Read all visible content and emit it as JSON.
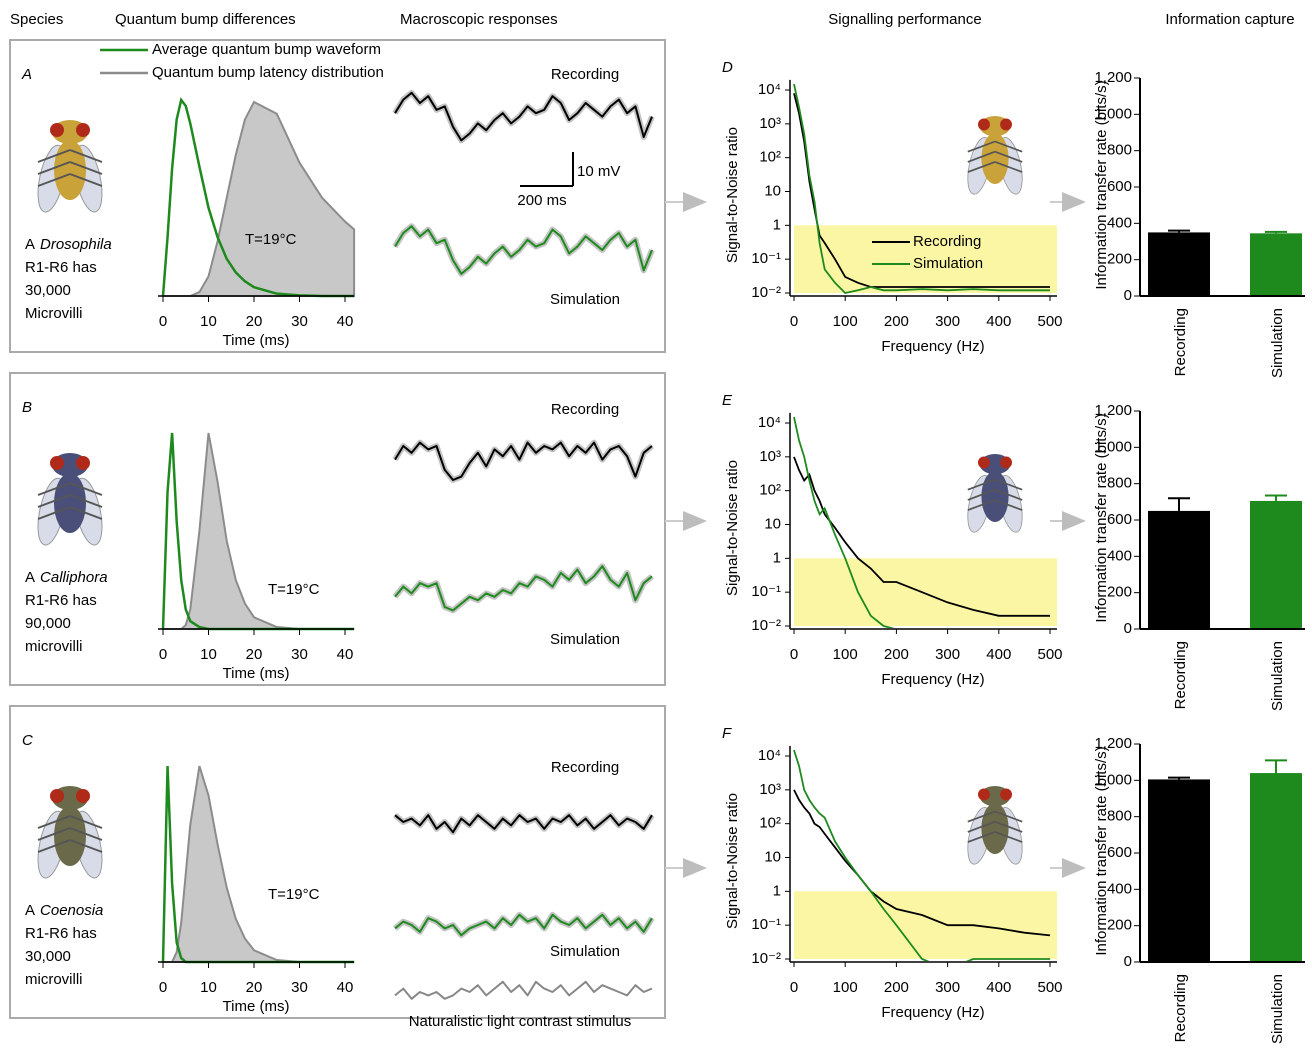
{
  "headers": [
    "Species",
    "Quantum bump differences",
    "Macroscopic responses",
    "Signalling performance",
    "Information capture"
  ],
  "legend": {
    "waveform": {
      "name": "Average quantum bump waveform",
      "color": "#1e8a1e"
    },
    "latency": {
      "name": "Quantum bump latency distribution",
      "color": "#8c8c8c"
    }
  },
  "rows": [
    {
      "letter": "A",
      "species": {
        "article": "A",
        "genus": "Drosophila",
        "lines": [
          "R1-R6 has",
          "30,000",
          "Microvilli"
        ]
      },
      "bump": {
        "xlabel": "Time (ms)",
        "xlim": [
          0,
          42
        ],
        "xticks": [
          0,
          10,
          20,
          30,
          40
        ],
        "temperature": "T=19°C",
        "x": [
          0,
          1,
          2,
          3,
          4,
          5,
          6,
          8,
          10,
          12,
          14,
          16,
          18,
          20,
          25,
          30,
          35,
          40,
          42
        ],
        "waveform": [
          0,
          0.3,
          0.65,
          0.9,
          1.0,
          0.97,
          0.88,
          0.66,
          0.45,
          0.3,
          0.19,
          0.12,
          0.075,
          0.045,
          0.012,
          0.003,
          0,
          0,
          0
        ],
        "latency": [
          0,
          0,
          0,
          0,
          0,
          0,
          0,
          0.02,
          0.1,
          0.28,
          0.5,
          0.72,
          0.9,
          0.99,
          0.93,
          0.68,
          0.5,
          0.38,
          0.34
        ]
      },
      "traces": {
        "recording_label": "Recording",
        "simulation_label": "Simulation",
        "recording": [
          2,
          6,
          8,
          5,
          7,
          3,
          4,
          -2,
          -6,
          -4,
          -1,
          -3,
          0,
          2,
          -1,
          1,
          4,
          2,
          3,
          7,
          5,
          0,
          2,
          5,
          3,
          1,
          4,
          6,
          2,
          4,
          -5,
          1
        ],
        "simulation": [
          1,
          5,
          7,
          4,
          6,
          2,
          3,
          -3,
          -7,
          -5,
          -2,
          -4,
          -1,
          1,
          -2,
          0,
          3,
          1,
          2,
          6,
          4,
          -1,
          1,
          4,
          2,
          0,
          3,
          5,
          1,
          3,
          -6,
          0
        ],
        "scalebar": {
          "voltage": {
            "value": 10,
            "label": "10 mV"
          },
          "time": {
            "value": 200,
            "label": "200 ms"
          }
        }
      },
      "snr": {
        "letter": "D",
        "ylabel": "Signal-to-Noise ratio",
        "xlabel": "Frequency (Hz)",
        "xlim": [
          0,
          500
        ],
        "xticks": [
          0,
          100,
          200,
          300,
          400,
          500
        ],
        "ylim": [
          0.01,
          20000
        ],
        "log": true,
        "yticks": [
          {
            "value": 10000,
            "label": "10⁴"
          },
          {
            "value": 1000,
            "label": "10³"
          },
          {
            "value": 100,
            "label": "10²"
          },
          10,
          1,
          {
            "value": 0.1,
            "label": "10⁻¹"
          },
          {
            "value": 0.01,
            "label": "10⁻²"
          }
        ],
        "band": [
          0.01,
          1
        ],
        "band_color": "#fbf6a4",
        "legend": true,
        "x": [
          0,
          10,
          20,
          30,
          40,
          50,
          60,
          80,
          100,
          125,
          150,
          175,
          200,
          250,
          300,
          350,
          400,
          450,
          500
        ],
        "series": [
          {
            "name": "Recording",
            "color": "#000000",
            "values": [
              8000,
              2000,
              300,
              20,
              3,
              0.5,
              0.3,
              0.1,
              0.03,
              0.02,
              0.015,
              0.015,
              0.015,
              0.015,
              0.015,
              0.015,
              0.015,
              0.015,
              0.015
            ]
          },
          {
            "name": "Simulation",
            "color": "#1e8a1e",
            "values": [
              15000,
              3000,
              500,
              30,
              5,
              0.3,
              0.05,
              0.02,
              0.01,
              0.012,
              0.015,
              0.012,
              0.012,
              0.013,
              0.012,
              0.013,
              0.012,
              0.012,
              0.012
            ]
          }
        ]
      },
      "info": {
        "ylabel": "Information transfer rate (bits/s)",
        "ylim": [
          0,
          1200
        ],
        "yticks": [
          0,
          200,
          400,
          600,
          800,
          {
            "value": 1000,
            "label": "1,000"
          },
          {
            "value": 1200,
            "label": "1,200"
          }
        ],
        "categories": [
          "Recording",
          "Simulation"
        ],
        "values": [
          350,
          345
        ],
        "errors": [
          10,
          8
        ],
        "colors": [
          "#000000",
          "#1e8a1e"
        ]
      }
    },
    {
      "letter": "B",
      "species": {
        "article": "A",
        "genus": "Calliphora",
        "lines": [
          "R1-R6 has",
          "90,000",
          "microvilli"
        ]
      },
      "bump": {
        "xlabel": "Time (ms)",
        "xlim": [
          0,
          42
        ],
        "xticks": [
          0,
          10,
          20,
          30,
          40
        ],
        "temperature": "T=19°C",
        "x": [
          0,
          1,
          2,
          3,
          4,
          5,
          6,
          8,
          10,
          12,
          14,
          16,
          18,
          20,
          25,
          30,
          35,
          40,
          42
        ],
        "waveform": [
          0,
          0.7,
          1.0,
          0.55,
          0.25,
          0.1,
          0.04,
          0.01,
          0,
          0,
          0,
          0,
          0,
          0,
          0,
          0,
          0,
          0,
          0
        ],
        "latency": [
          0,
          0,
          0,
          0,
          0,
          0.02,
          0.1,
          0.5,
          1.0,
          0.75,
          0.45,
          0.25,
          0.13,
          0.06,
          0.01,
          0,
          0,
          0,
          0
        ]
      },
      "traces": {
        "recording_label": "Recording",
        "simulation_label": "Simulation",
        "recording": [
          1,
          5,
          3,
          6,
          4,
          5,
          -2,
          -5,
          -4,
          0,
          3,
          -1,
          4,
          2,
          5,
          1,
          6,
          3,
          5,
          4,
          6,
          2,
          5,
          3,
          6,
          1,
          4,
          5,
          2,
          -4,
          3,
          5
        ],
        "simulation": [
          -2,
          1,
          -1,
          2,
          1,
          2,
          -5,
          -6,
          -4,
          -2,
          -3,
          -1,
          -2,
          0,
          -1,
          2,
          1,
          4,
          3,
          1,
          5,
          3,
          6,
          2,
          4,
          7,
          3,
          1,
          5,
          -3,
          2,
          4
        ]
      },
      "snr": {
        "letter": "E",
        "ylabel": "Signal-to-Noise ratio",
        "xlabel": "Frequency (Hz)",
        "xlim": [
          0,
          500
        ],
        "xticks": [
          0,
          100,
          200,
          300,
          400,
          500
        ],
        "ylim": [
          0.01,
          20000
        ],
        "log": true,
        "yticks": [
          {
            "value": 10000,
            "label": "10⁴"
          },
          {
            "value": 1000,
            "label": "10³"
          },
          {
            "value": 100,
            "label": "10²"
          },
          10,
          1,
          {
            "value": 0.1,
            "label": "10⁻¹"
          },
          {
            "value": 0.01,
            "label": "10⁻²"
          }
        ],
        "band": [
          0.01,
          1
        ],
        "band_color": "#fbf6a4",
        "legend": false,
        "x": [
          0,
          10,
          20,
          30,
          40,
          50,
          60,
          80,
          100,
          125,
          150,
          175,
          200,
          250,
          300,
          350,
          400,
          450,
          500
        ],
        "series": [
          {
            "name": "Recording",
            "color": "#000000",
            "values": [
              1000,
              400,
              200,
              300,
              100,
              50,
              20,
              8,
              3,
              1,
              0.5,
              0.2,
              0.2,
              0.1,
              0.05,
              0.03,
              0.02,
              0.02,
              0.02
            ]
          },
          {
            "name": "Simulation",
            "color": "#1e8a1e",
            "values": [
              15000,
              3000,
              1000,
              200,
              50,
              20,
              30,
              5,
              1,
              0.1,
              0.02,
              0.01,
              0.008,
              0.008,
              0.008,
              0.008,
              0.008,
              0.008,
              0.008
            ]
          }
        ]
      },
      "info": {
        "ylabel": "Information transfer rate (bits/s)",
        "ylim": [
          0,
          1200
        ],
        "yticks": [
          0,
          200,
          400,
          600,
          800,
          {
            "value": 1000,
            "label": "1,000"
          },
          {
            "value": 1200,
            "label": "1,200"
          }
        ],
        "categories": [
          "Recording",
          "Simulation"
        ],
        "values": [
          650,
          705
        ],
        "errors": [
          70,
          30
        ],
        "colors": [
          "#000000",
          "#1e8a1e"
        ]
      }
    },
    {
      "letter": "C",
      "species": {
        "article": "A",
        "genus": "Coenosia",
        "lines": [
          "R1-R6 has",
          "30,000",
          "microvilli"
        ]
      },
      "bump": {
        "xlabel": "Time (ms)",
        "xlim": [
          0,
          42
        ],
        "xticks": [
          0,
          10,
          20,
          30,
          40
        ],
        "temperature": "T=19°C",
        "x": [
          0,
          1,
          2,
          3,
          4,
          5,
          6,
          8,
          10,
          12,
          14,
          16,
          18,
          20,
          25,
          30,
          35,
          40,
          42
        ],
        "waveform": [
          0,
          1.0,
          0.4,
          0.1,
          0.02,
          0,
          0,
          0,
          0,
          0,
          0,
          0,
          0,
          0,
          0,
          0,
          0,
          0,
          0
        ],
        "latency": [
          0,
          0,
          0,
          0.05,
          0.2,
          0.45,
          0.7,
          1.0,
          0.85,
          0.6,
          0.38,
          0.22,
          0.12,
          0.06,
          0.01,
          0,
          0,
          0,
          0
        ]
      },
      "traces": {
        "recording_label": "Recording",
        "simulation_label": "Simulation",
        "stimulus_label": "Naturalistic light contrast stimulus",
        "recording": [
          2,
          0,
          1,
          -1,
          2,
          -2,
          0,
          -3,
          1,
          -1,
          2,
          0,
          -2,
          1,
          -1,
          2,
          0,
          1,
          -2,
          1,
          0,
          2,
          -1,
          1,
          -2,
          0,
          2,
          -1,
          1,
          0,
          -2,
          2
        ],
        "simulation": [
          -1,
          1,
          0,
          -2,
          2,
          1,
          -1,
          0,
          -3,
          -1,
          0,
          1,
          -1,
          2,
          0,
          3,
          1,
          2,
          -1,
          3,
          1,
          0,
          2,
          -1,
          1,
          3,
          0,
          2,
          -1,
          1,
          -2,
          2
        ],
        "stimulus": [
          -1,
          1,
          -2,
          0,
          -1,
          0,
          -2,
          -1,
          1,
          0,
          2,
          -1,
          1,
          3,
          0,
          2,
          -1,
          3,
          1,
          0,
          2,
          -1,
          1,
          3,
          0,
          2,
          1,
          0,
          -1,
          2,
          0,
          1
        ]
      },
      "snr": {
        "letter": "F",
        "ylabel": "Signal-to-Noise ratio",
        "xlabel": "Frequency (Hz)",
        "xlim": [
          0,
          500
        ],
        "xticks": [
          0,
          100,
          200,
          300,
          400,
          500
        ],
        "ylim": [
          0.01,
          20000
        ],
        "log": true,
        "yticks": [
          {
            "value": 10000,
            "label": "10⁴"
          },
          {
            "value": 1000,
            "label": "10³"
          },
          {
            "value": 100,
            "label": "10²"
          },
          10,
          1,
          {
            "value": 0.1,
            "label": "10⁻¹"
          },
          {
            "value": 0.01,
            "label": "10⁻²"
          }
        ],
        "band": [
          0.01,
          1
        ],
        "band_color": "#fbf6a4",
        "legend": false,
        "x": [
          0,
          10,
          20,
          30,
          40,
          50,
          60,
          80,
          100,
          125,
          150,
          175,
          200,
          250,
          300,
          350,
          400,
          450,
          500
        ],
        "series": [
          {
            "name": "Recording",
            "color": "#000000",
            "values": [
              1000,
              500,
              300,
              200,
              100,
              80,
              50,
              20,
              8,
              3,
              1,
              0.5,
              0.3,
              0.2,
              0.1,
              0.1,
              0.08,
              0.06,
              0.05
            ]
          },
          {
            "name": "Simulation",
            "color": "#1e8a1e",
            "values": [
              15000,
              5000,
              1000,
              500,
              300,
              200,
              150,
              30,
              10,
              3,
              1,
              0.3,
              0.1,
              0.01,
              0.005,
              0.01,
              0.01,
              0.01,
              0.01
            ]
          }
        ]
      },
      "info": {
        "ylabel": "Information transfer rate (bits/s)",
        "ylim": [
          0,
          1200
        ],
        "yticks": [
          0,
          200,
          400,
          600,
          800,
          {
            "value": 1000,
            "label": "1,000"
          },
          {
            "value": 1200,
            "label": "1,200"
          }
        ],
        "categories": [
          "Recording",
          "Simulation"
        ],
        "values": [
          1005,
          1040
        ],
        "errors": [
          10,
          70
        ],
        "colors": [
          "#000000",
          "#1e8a1e"
        ]
      }
    }
  ]
}
